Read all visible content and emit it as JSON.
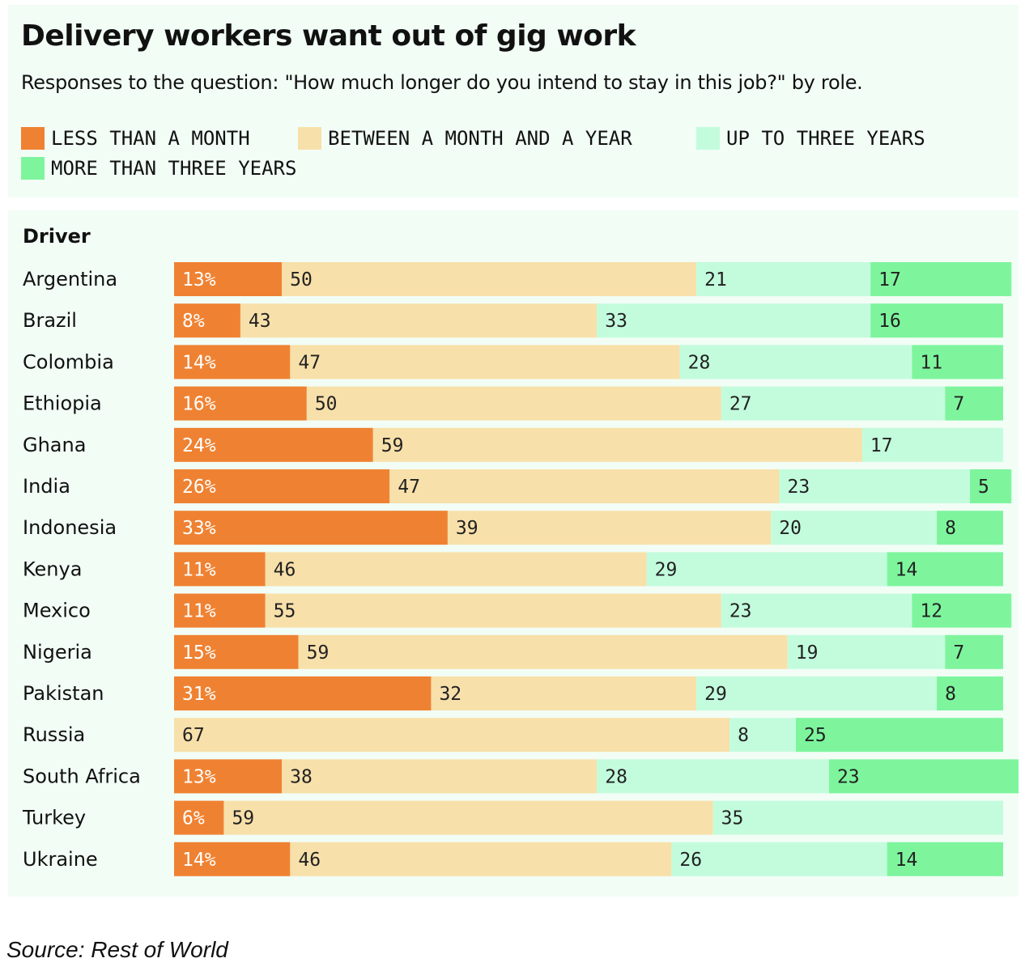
{
  "header": {
    "title": "Delivery workers want out of gig work",
    "subtitle": "Responses to the question: \"How much longer do you intend to stay in this job?\" by role."
  },
  "legend": [
    {
      "label": "LESS THAN A MONTH",
      "color": "#ef8232"
    },
    {
      "label": "BETWEEN A MONTH AND A YEAR",
      "color": "#f8e0aa"
    },
    {
      "label": "UP TO THREE YEARS",
      "color": "#c3fcdd"
    },
    {
      "label": "MORE THAN THREE YEARS",
      "color": "#7ef59d"
    }
  ],
  "chart_data": {
    "type": "bar",
    "orientation": "horizontal",
    "stacked": true,
    "group_label": "Driver",
    "xlim": [
      0,
      100
    ],
    "categories": [
      "Argentina",
      "Brazil",
      "Colombia",
      "Ethiopia",
      "Ghana",
      "India",
      "Indonesia",
      "Kenya",
      "Mexico",
      "Nigeria",
      "Pakistan",
      "Russia",
      "South Africa",
      "Turkey",
      "Ukraine"
    ],
    "series": [
      {
        "name": "LESS THAN A MONTH",
        "color": "#ef8232",
        "values": [
          13,
          8,
          14,
          16,
          24,
          26,
          33,
          11,
          11,
          15,
          31,
          0,
          13,
          6,
          14
        ]
      },
      {
        "name": "BETWEEN A MONTH AND A YEAR",
        "color": "#f8e0aa",
        "values": [
          50,
          43,
          47,
          50,
          59,
          47,
          39,
          46,
          55,
          59,
          32,
          67,
          38,
          59,
          46
        ]
      },
      {
        "name": "UP TO THREE YEARS",
        "color": "#c3fcdd",
        "values": [
          21,
          33,
          28,
          27,
          17,
          23,
          20,
          29,
          23,
          19,
          29,
          8,
          28,
          35,
          26
        ]
      },
      {
        "name": "MORE THAN THREE YEARS",
        "color": "#7ef59d",
        "values": [
          17,
          16,
          11,
          7,
          0,
          5,
          8,
          14,
          12,
          7,
          8,
          25,
          23,
          0,
          14
        ]
      }
    ],
    "labels": [
      [
        "13%",
        "50",
        "21",
        "17"
      ],
      [
        "8%",
        "43",
        "33",
        "16"
      ],
      [
        "14%",
        "47",
        "28",
        "11"
      ],
      [
        "16%",
        "50",
        "27",
        "7"
      ],
      [
        "24%",
        "59",
        "17",
        ""
      ],
      [
        "26%",
        "47",
        "23",
        "5"
      ],
      [
        "33%",
        "39",
        "20",
        "8"
      ],
      [
        "11%",
        "46",
        "29",
        "14"
      ],
      [
        "11%",
        "55",
        "23",
        "12"
      ],
      [
        "15%",
        "59",
        "19",
        "7"
      ],
      [
        "31%",
        "32",
        "29",
        "8"
      ],
      [
        "",
        "67",
        "8",
        "25"
      ],
      [
        "13%",
        "38",
        "28",
        "23"
      ],
      [
        "6%",
        "59",
        "35",
        ""
      ],
      [
        "14%",
        "46",
        "26",
        "14"
      ]
    ]
  },
  "source": "Source: Rest of World"
}
